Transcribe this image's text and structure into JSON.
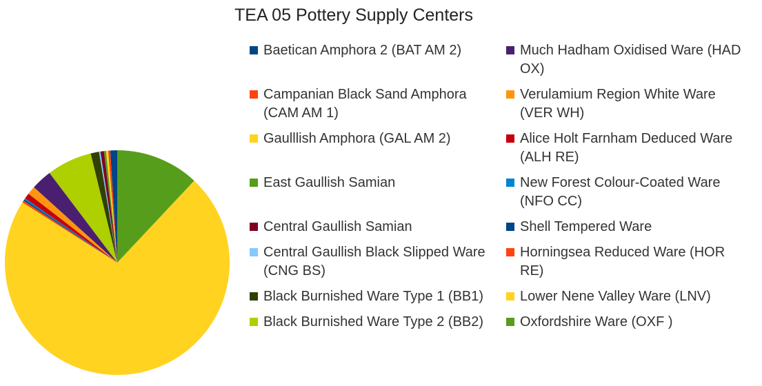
{
  "chart_data": {
    "type": "pie",
    "title": "TEA 05 Pottery Supply Centers",
    "categories": [
      "Baetican Amphora 2 (BAT AM 2)",
      "Campanian Black Sand Amphora  (CAM AM 1)",
      "Gaulllish Amphora (GAL AM 2)",
      "East Gaullish Samian",
      "Central Gaullish Samian",
      "Central Gaullish Black Slipped Ware (CNG BS)",
      "Black Burnished Ware Type 1 (BB1)",
      "Black Burnished Ware Type 2 (BB2)",
      "Much Hadham Oxidised Ware (HAD OX)",
      "Verulamium Region White Ware (VER WH)",
      "Alice Holt Farnham Deduced Ware (ALH RE)",
      "New Forest Colour-Coated Ware (NFO CC)",
      "Shell Tempered Ware",
      "Horningsea Reduced Ware (HOR RE)",
      "Lower Nene Valley Ware (LNV)",
      "Oxfordshire Ware (OXF )"
    ],
    "values": [
      1.0,
      0.3,
      0.3,
      0.3,
      0.5,
      0.2,
      1.2,
      6.5,
      3.0,
      1.2,
      0.8,
      0.2,
      0.2,
      0.3,
      72,
      12
    ],
    "colors": [
      "#004586",
      "#ff420e",
      "#ffd320",
      "#579d1c",
      "#7e0021",
      "#83caff",
      "#314004",
      "#aecf00",
      "#4b1f6f",
      "#ff950e",
      "#c5000b",
      "#0084d1",
      "#004586",
      "#ff420e",
      "#ffd320",
      "#579d1c"
    ],
    "legend": "right"
  }
}
